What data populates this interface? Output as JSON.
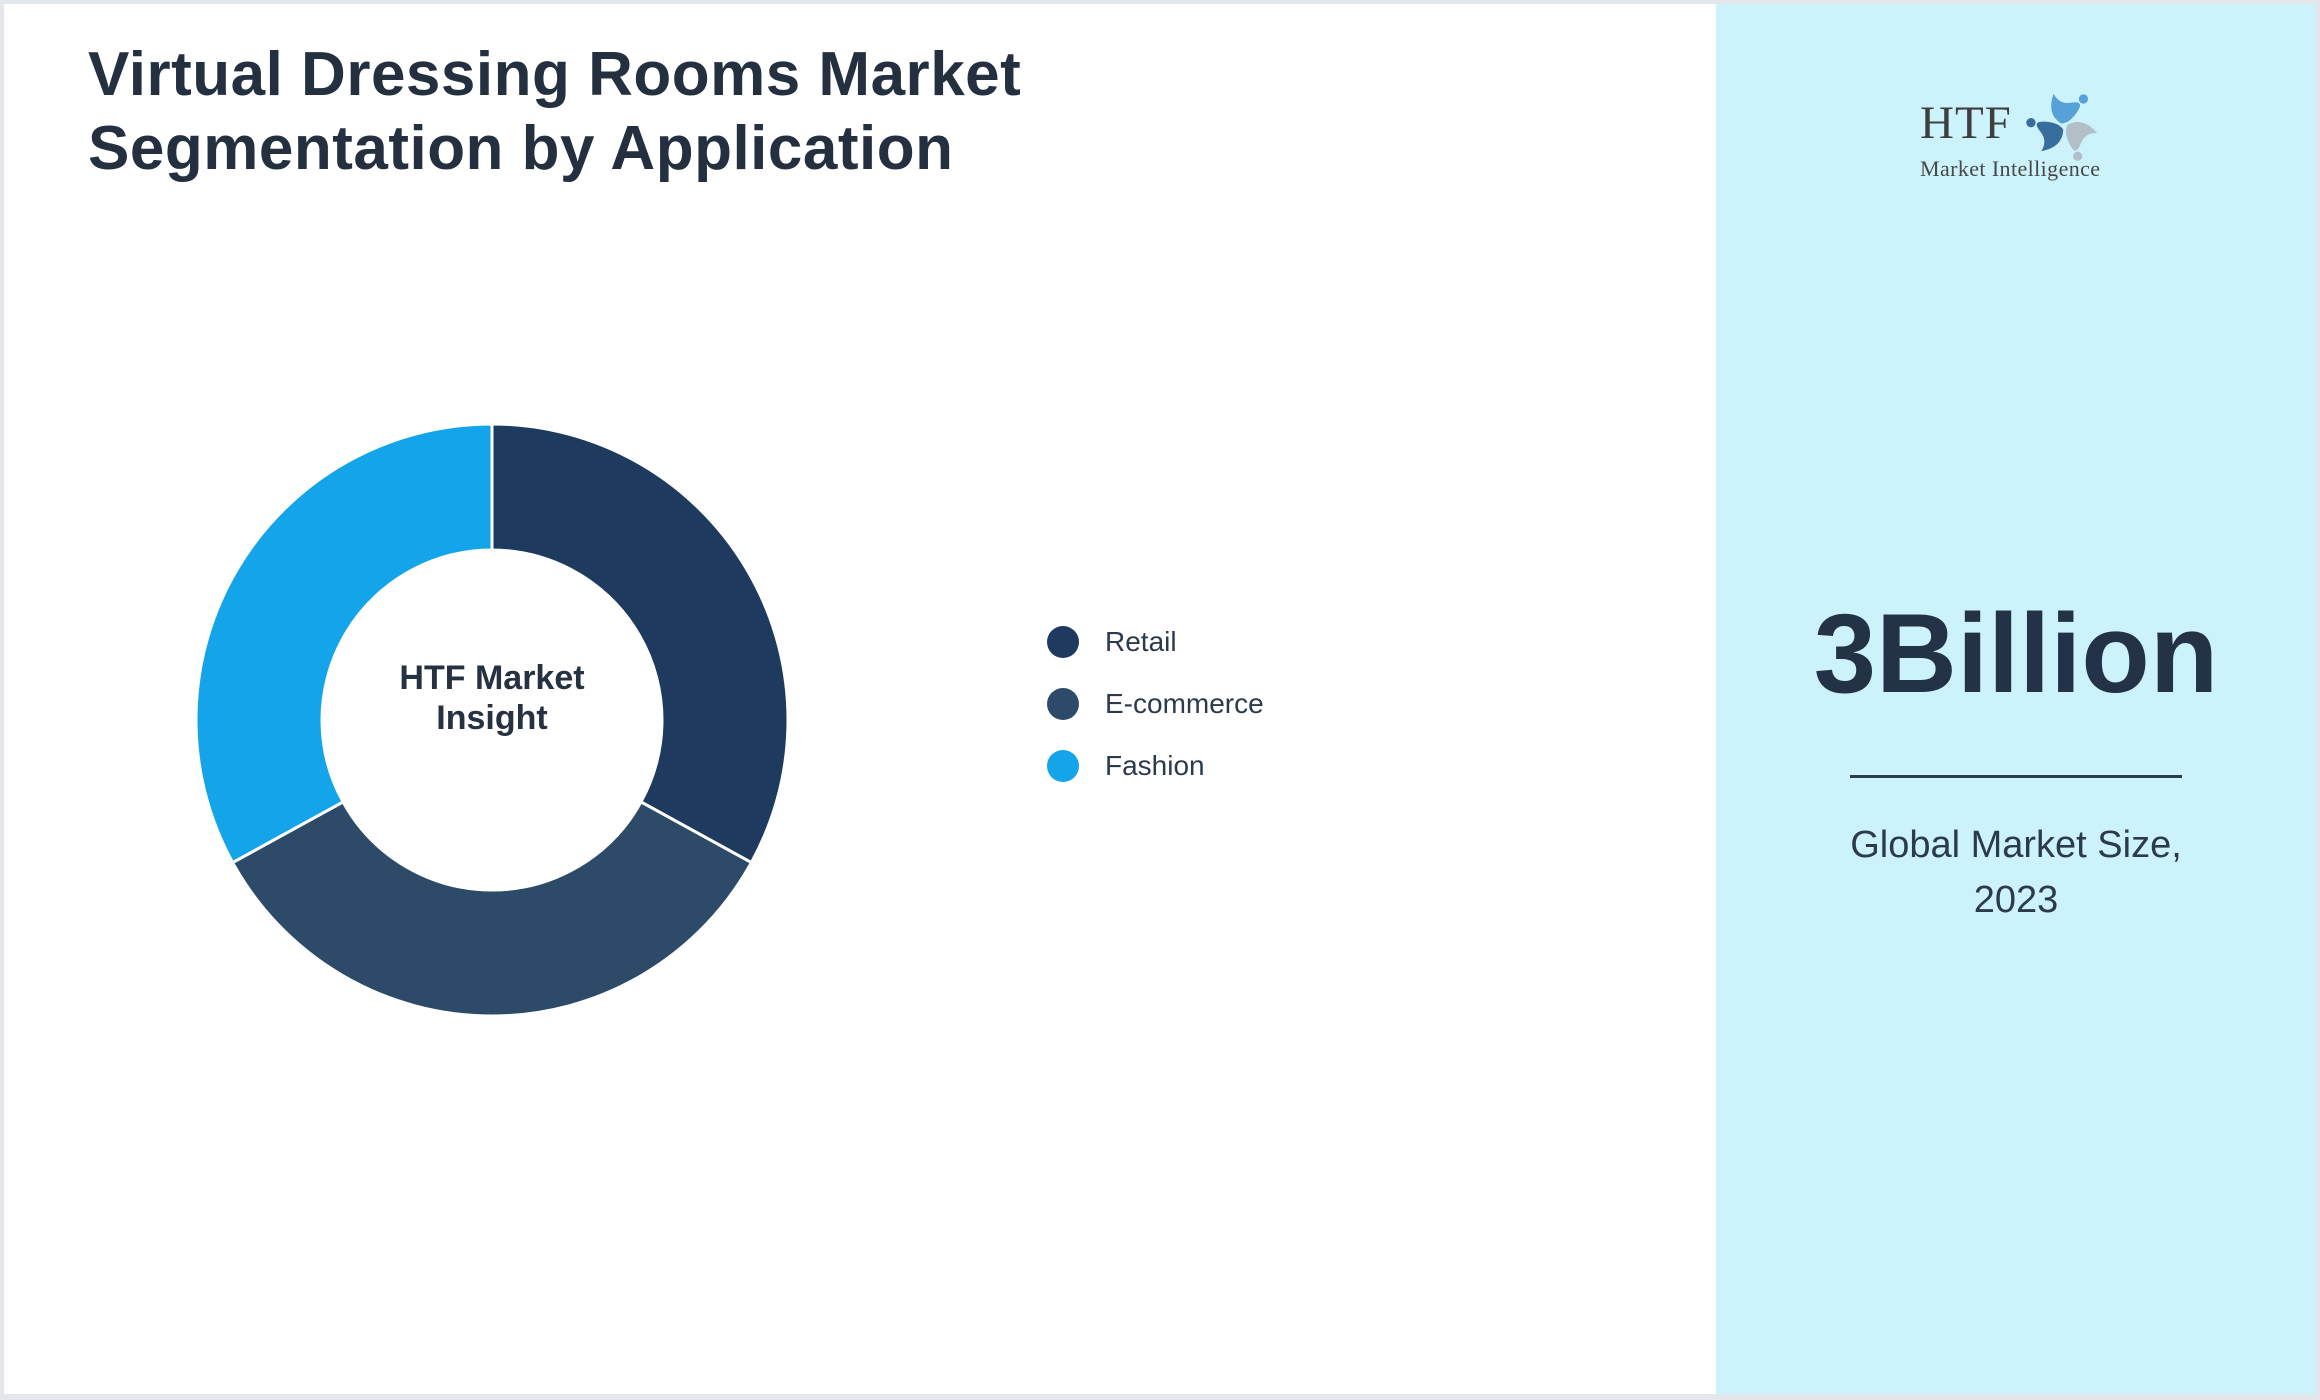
{
  "page": {
    "background": "#ffffff",
    "border_color": "#e3e6eb"
  },
  "header": {
    "title_line1": "Virtual Dressing Rooms Market",
    "title_line2": "Segmentation by Application",
    "title_color": "#242f3f"
  },
  "chart_data": {
    "type": "pie",
    "subtype": "donut",
    "title": "Virtual Dressing Rooms Market Segmentation by Application",
    "categories": [
      "Retail",
      "E-commerce",
      "Fashion"
    ],
    "values": [
      33,
      34,
      33
    ],
    "values_unit": "percent (estimated from segment angles, no labels shown)",
    "colors": [
      "#1f3a5f",
      "#2d4b68",
      "#14a4e9"
    ],
    "start_angle_deg": 0,
    "direction": "clockwise",
    "inner_radius_ratio": 0.576,
    "separator_color": "#ffffff",
    "legend_position": "right",
    "center_label": "HTF Market Insight"
  },
  "donut_center": {
    "line1": "HTF Market",
    "line2": "Insight"
  },
  "sidebar": {
    "background": "#ccf3fb",
    "logo": {
      "text": "HTF",
      "subtext": "Market Intelligence",
      "icon": "swirl-figures-icon",
      "icon_colors": [
        "#55a1d8",
        "#b3bfc7",
        "#376e9e"
      ]
    },
    "stat_value": "3Billion",
    "stat_label_line1": "Global Market Size,",
    "stat_label_line2": "2023",
    "divider_color": "#2c3c4e",
    "text_color": "#233247"
  }
}
